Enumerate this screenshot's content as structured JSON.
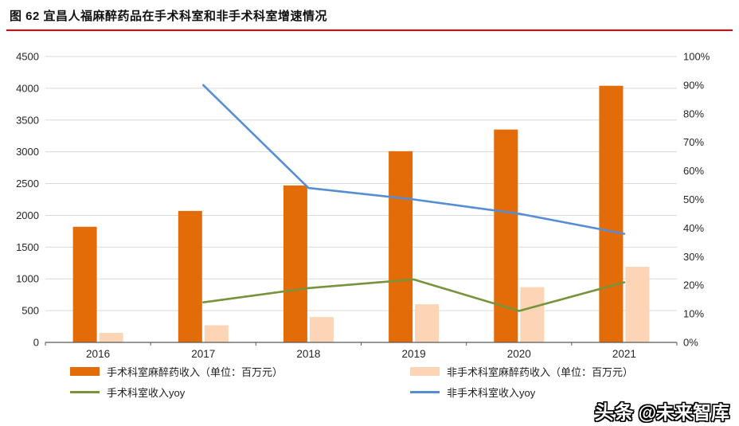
{
  "header": {
    "title": "图 62 宜昌人福麻醉药品在手术科室和非手术科室增速情况",
    "underline_color": "#e60000"
  },
  "chart_data": {
    "type": "bar",
    "subtype": "combo-bar-line",
    "categories": [
      "2016",
      "2017",
      "2018",
      "2019",
      "2020",
      "2021"
    ],
    "bar_series": [
      {
        "name": "手术科室麻醉药收入（单位：百万元）",
        "color": "#E36C09",
        "axis": "left",
        "values": [
          1820,
          2070,
          2470,
          3010,
          3350,
          4040
        ]
      },
      {
        "name": "非手术科室麻醉药收入（单位：百万元）",
        "color": "#FBD5B5",
        "axis": "left",
        "values": [
          150,
          270,
          400,
          600,
          870,
          1190
        ]
      }
    ],
    "line_series": [
      {
        "name": "手术科室收入yoy",
        "color": "#77933C",
        "axis": "right",
        "values": [
          null,
          14,
          19,
          22,
          11,
          21
        ]
      },
      {
        "name": "非手术科室收入yoy",
        "color": "#558ED5",
        "axis": "right",
        "values": [
          null,
          90,
          54,
          50,
          45,
          38
        ]
      }
    ],
    "left_axis": {
      "min": 0,
      "max": 4500,
      "step": 500,
      "ticks": [
        "0",
        "500",
        "1000",
        "1500",
        "2000",
        "2500",
        "3000",
        "3500",
        "4000",
        "4500"
      ]
    },
    "right_axis": {
      "min": 0,
      "max": 100,
      "step": 10,
      "ticks": [
        "0%",
        "10%",
        "20%",
        "30%",
        "40%",
        "50%",
        "60%",
        "70%",
        "80%",
        "90%",
        "100%"
      ]
    },
    "grid": true,
    "grid_color": "#d9d9d9",
    "axis_color": "#595959",
    "legend_position": "bottom"
  },
  "watermark": {
    "brand": "头条",
    "handle": "@未来智库"
  }
}
